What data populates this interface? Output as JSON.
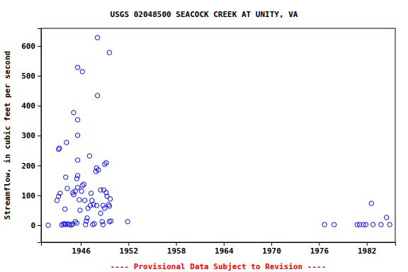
{
  "chart_data": {
    "type": "scatter",
    "title": "USGS 02048500 SEACOCK CREEK AT UNITY, VA",
    "y_label": "Streamflow, in cubic feet per second",
    "annotation": "---- Provisional Data Subject to Revision ----",
    "color": "#0000ff",
    "marker": "circle",
    "xlim": [
      1941.0,
      1985.6
    ],
    "xticks": [
      1946,
      1952,
      1958,
      1964,
      1970,
      1976,
      1982
    ],
    "ylim": [
      -57,
      659
    ],
    "yticks": [
      0,
      100,
      200,
      300,
      400,
      500,
      600
    ],
    "grid": false,
    "x": [
      1941.9,
      1943.0,
      1943.2,
      1943.4,
      1943.2,
      1943.3,
      1944.2,
      1944.1,
      1944.3,
      1944.0,
      1943.6,
      1943.8,
      1944.0,
      1944.1,
      1944.4,
      1944.6,
      1944.8,
      1945.0,
      1945.1,
      1945.0,
      1945.3,
      1945.1,
      1945.3,
      1945.5,
      1945.6,
      1945.6,
      1945.6,
      1945.6,
      1945.5,
      1945.6,
      1945.6,
      1945.8,
      1945.9,
      1946.1,
      1946.2,
      1946.2,
      1946.4,
      1946.5,
      1946.6,
      1946.7,
      1946.8,
      1946.9,
      1947.1,
      1947.2,
      1947.3,
      1947.4,
      1947.5,
      1947.7,
      1947.6,
      1947.9,
      1948.0,
      1948.0,
      1948.1,
      1948.1,
      1948.2,
      1948.5,
      1948.5,
      1948.7,
      1948.8,
      1948.8,
      1948.9,
      1949.0,
      1949.0,
      1949.2,
      1949.2,
      1949.3,
      1949.5,
      1949.6,
      1949.6,
      1949.6,
      1949.8,
      1949.7,
      1951.9,
      1976.7,
      1977.9,
      1980.8,
      1981.1,
      1981.6,
      1981.9,
      1982.6,
      1982.8,
      1983.8,
      1984.5,
      1984.9
    ],
    "values": [
      0,
      83,
      97,
      107,
      254,
      258,
      277,
      161,
      123,
      54,
      1,
      4,
      5,
      2,
      4,
      2,
      1,
      4,
      377,
      109,
      114,
      102,
      12,
      7,
      353,
      301,
      218,
      166,
      156,
      528,
      126,
      85,
      50,
      114,
      514,
      133,
      137,
      83,
      2,
      14,
      24,
      57,
      232,
      66,
      107,
      83,
      2,
      5,
      69,
      180,
      66,
      192,
      628,
      434,
      185,
      118,
      40,
      12,
      2,
      66,
      118,
      57,
      204,
      209,
      109,
      97,
      69,
      578,
      64,
      12,
      14,
      88,
      12,
      2,
      2,
      2,
      2,
      2,
      2,
      73,
      2,
      2,
      26,
      2
    ]
  }
}
